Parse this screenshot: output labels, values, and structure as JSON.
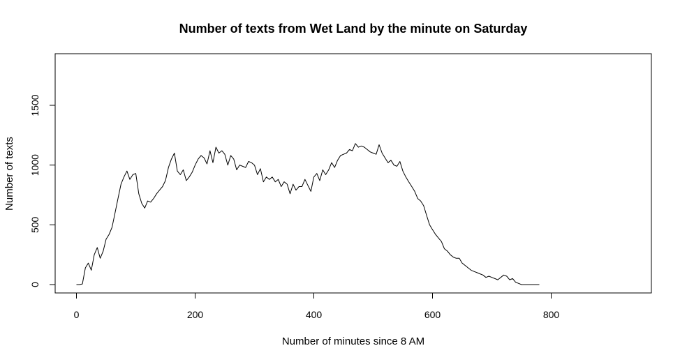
{
  "chart_data": {
    "type": "line",
    "title": "Number of texts from Wet Land by the minute on Saturday",
    "xlabel": "Number of minutes since 8 AM",
    "ylabel": "Number of texts",
    "xlim": [
      0,
      930
    ],
    "ylim": [
      0,
      1850
    ],
    "x_ticks": [
      0,
      200,
      400,
      600,
      800
    ],
    "y_ticks": [
      0,
      500,
      1000,
      1500
    ],
    "grid": false,
    "series": [
      {
        "color": "#000000",
        "x_start": 0,
        "x_step": 5,
        "values": [
          0,
          0,
          5,
          140,
          180,
          120,
          250,
          310,
          220,
          280,
          380,
          420,
          480,
          600,
          720,
          840,
          900,
          950,
          880,
          920,
          930,
          760,
          680,
          640,
          700,
          690,
          720,
          760,
          790,
          820,
          870,
          980,
          1050,
          1100,
          950,
          920,
          960,
          870,
          900,
          940,
          1000,
          1050,
          1080,
          1060,
          1010,
          1120,
          1020,
          1150,
          1100,
          1120,
          1090,
          1000,
          1080,
          1050,
          960,
          1000,
          990,
          980,
          1030,
          1020,
          1000,
          920,
          970,
          860,
          900,
          880,
          900,
          860,
          880,
          820,
          860,
          840,
          760,
          840,
          790,
          820,
          820,
          880,
          830,
          780,
          900,
          930,
          870,
          960,
          920,
          960,
          1020,
          980,
          1040,
          1080,
          1090,
          1100,
          1130,
          1120,
          1180,
          1150,
          1160,
          1150,
          1130,
          1110,
          1100,
          1090,
          1170,
          1100,
          1060,
          1020,
          1040,
          1000,
          990,
          1030,
          950,
          900,
          860,
          820,
          780,
          720,
          700,
          660,
          580,
          500,
          460,
          420,
          390,
          360,
          300,
          280,
          250,
          230,
          220,
          220,
          180,
          160,
          140,
          120,
          110,
          100,
          90,
          80,
          60,
          70,
          60,
          50,
          40,
          60,
          80,
          70,
          40,
          50,
          20,
          10,
          0,
          0,
          0,
          0,
          0,
          0,
          0
        ]
      }
    ]
  }
}
